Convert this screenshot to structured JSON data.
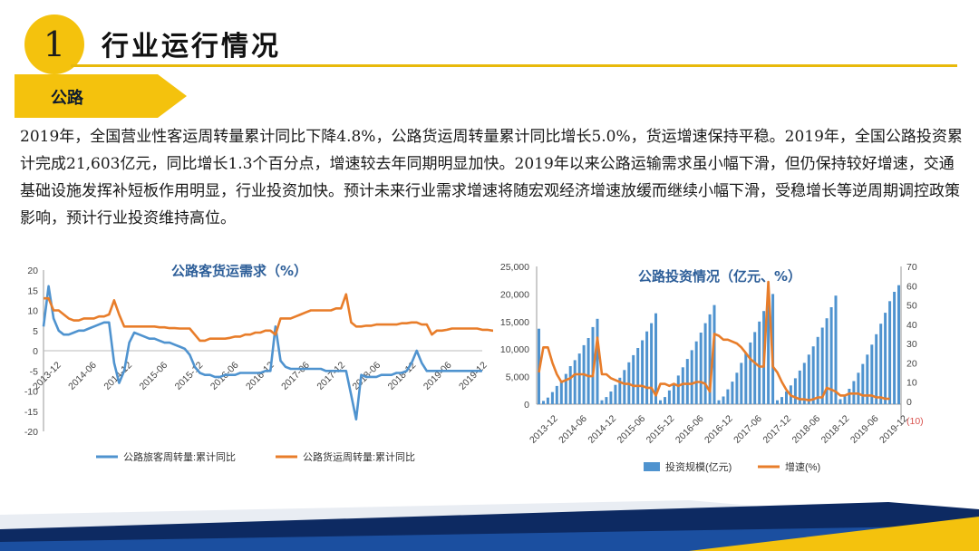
{
  "header": {
    "section_number": "1",
    "title": "行业运行情况",
    "section_label": "公路"
  },
  "paragraph": "2019年，全国营业性客运周转量累计同比下降4.8%，公路货运周转量累计同比增长5.0%，货运增速保持平稳。2019年，全国公路投资累计完成21,603亿元，同比增长1.3个百分点，增速较去年同期明显加快。2019年以来公路运输需求虽小幅下滑，但仍保持较好增速，交通基础设施发挥补短板作用明显，行业投资加快。预计未来行业需求增速将随宏观经济增速放缓而继续小幅下滑，受稳增长等逆周期调控政策影响，预计行业投资维持高位。",
  "colors": {
    "accent_yellow": "#f4c20d",
    "series_blue": "#4f93cf",
    "series_orange": "#e87d2a",
    "title_blue": "#2e5f99"
  },
  "chart_data": [
    {
      "type": "line",
      "title": "公路客货运需求（%）",
      "ylim": [
        -20,
        20
      ],
      "yticks": [
        "20",
        "15",
        "10",
        "5",
        "0",
        "-5",
        "-10",
        "-15",
        "-20"
      ],
      "xtick_labels": [
        "2013-12",
        "2014-06",
        "2014-12",
        "2015-06",
        "2015-12",
        "2016-06",
        "2016-12",
        "2017-06",
        "2017-12",
        "2018-06",
        "2018-12",
        "2019-06",
        "2019-12"
      ],
      "x_start": "2013-12",
      "legend_position": "bottom",
      "series": [
        {
          "name": "公路旅客周转量:累计同比",
          "color": "#4f93cf",
          "values": [
            6,
            16,
            8,
            5,
            4,
            4,
            4.5,
            5,
            5,
            5.5,
            6,
            6.5,
            7,
            7,
            -3,
            -8,
            -5,
            2,
            4.5,
            4,
            3.5,
            3,
            3,
            2.5,
            2,
            2,
            1.5,
            1,
            0.5,
            -1,
            -4,
            -5.5,
            -6,
            -6,
            -6.5,
            -6.5,
            -6,
            -6,
            -6,
            -5.5,
            -5.5,
            -5.5,
            -5.5,
            -5.5,
            -5,
            -5,
            6,
            -2.5,
            -4,
            -4.5,
            -4.5,
            -4.5,
            -4.5,
            -4.5,
            -4.5,
            -4.5,
            -5,
            -5,
            -5,
            -5,
            -5,
            -11,
            -17,
            -6,
            -6.5,
            -6.5,
            -6.5,
            -6,
            -6,
            -6,
            -5.5,
            -5.5,
            -5,
            -3,
            0,
            -3,
            -5,
            -5,
            -5,
            -5,
            -5,
            -5,
            -5,
            -5,
            -5,
            -5,
            -5,
            -5
          ]
        },
        {
          "name": "公路货运周转量:累计同比",
          "color": "#e87d2a",
          "values": [
            13,
            13,
            10,
            10,
            9,
            8,
            7.5,
            7.5,
            8,
            8,
            8,
            8.5,
            8.5,
            9,
            12.5,
            9,
            6,
            6,
            6,
            6,
            6,
            6,
            6,
            5.8,
            5.8,
            5.6,
            5.6,
            5.5,
            5.5,
            5.5,
            4,
            2.5,
            2.5,
            3,
            3,
            3,
            3,
            3.2,
            3.5,
            3.5,
            4,
            4,
            4.5,
            4.5,
            5,
            5,
            4,
            8,
            8,
            8,
            8.5,
            9,
            9.5,
            10,
            10,
            10,
            10,
            10,
            10.5,
            10.5,
            14,
            7,
            6,
            6,
            6.2,
            6.2,
            6.5,
            6.5,
            6.5,
            6.5,
            6.5,
            6.8,
            6.8,
            7,
            7,
            6.5,
            6.5,
            4,
            5,
            5,
            5.2,
            5.5,
            5.5,
            5.5,
            5.5,
            5.5,
            5.5,
            5.2,
            5.2,
            5.0,
            5.0
          ]
        }
      ]
    },
    {
      "type": "bar",
      "title": "公路投资情况（亿元、%）",
      "y_left_lim": [
        0,
        25000
      ],
      "y_left_ticks": [
        "25,000",
        "20,000",
        "15,000",
        "10,000",
        "5,000",
        "0"
      ],
      "y_right_lim": [
        -10,
        70
      ],
      "y_right_ticks": [
        "70",
        "60",
        "50",
        "40",
        "30",
        "20",
        "10",
        "0",
        "(10)"
      ],
      "xtick_labels": [
        "2013-12",
        "2014-06",
        "2014-12",
        "2015-06",
        "2015-12",
        "2016-06",
        "2016-12",
        "2017-06",
        "2017-12",
        "2018-06",
        "2018-12",
        "2019-06",
        "2019-12"
      ],
      "x_start": "2013-12",
      "legend_position": "bottom",
      "series": [
        {
          "name": "投资规模(亿元)",
          "color": "#4f93cf",
          "kind": "bar",
          "values": [
            13700,
            600,
            1200,
            2200,
            3300,
            4300,
            5500,
            6900,
            8000,
            9200,
            10700,
            12000,
            14000,
            15500,
            700,
            1300,
            2300,
            3500,
            4800,
            6200,
            7600,
            8900,
            10200,
            11600,
            13200,
            14700,
            16500,
            700,
            1300,
            2500,
            3800,
            5200,
            6700,
            8200,
            9800,
            11400,
            13000,
            14700,
            16300,
            18000,
            700,
            1400,
            2700,
            4100,
            5700,
            7500,
            9300,
            11200,
            13100,
            15000,
            16900,
            19000,
            20000,
            700,
            1300,
            2300,
            3400,
            4700,
            6100,
            7500,
            9000,
            10500,
            12200,
            13900,
            15600,
            17600,
            19700,
            900,
            1700,
            2800,
            4200,
            5700,
            7300,
            9000,
            10800,
            12700,
            14600,
            16600,
            18700,
            20400,
            21603
          ]
        },
        {
          "name": "增速(%)",
          "color": "#e87d2a",
          "kind": "line",
          "values": [
            15,
            28,
            28,
            20,
            14,
            10,
            11,
            12,
            14,
            14,
            14,
            13,
            13,
            33,
            14,
            14,
            12,
            11,
            10,
            9,
            9,
            8,
            8,
            8,
            7,
            7,
            3,
            9,
            9,
            8,
            9,
            8,
            9,
            9,
            9,
            10,
            10,
            9,
            5,
            35,
            34,
            32,
            32,
            31,
            30,
            28,
            25,
            22,
            20,
            18,
            18,
            62,
            18,
            15,
            10,
            6,
            3,
            2,
            1,
            1,
            0.5,
            1,
            2,
            2,
            7,
            6,
            5,
            3,
            3,
            4,
            4,
            4,
            3,
            3,
            3,
            2,
            2,
            1.3,
            1.3
          ]
        }
      ]
    }
  ]
}
